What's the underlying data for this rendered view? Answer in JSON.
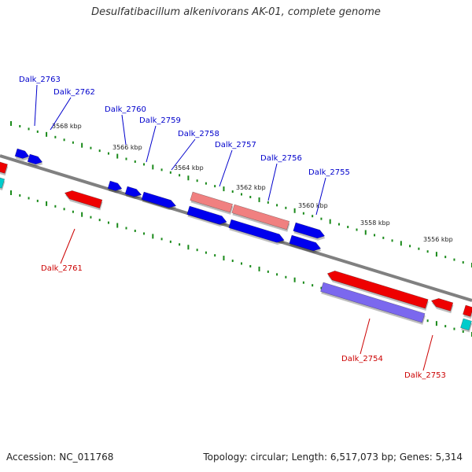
{
  "title": "Desulfatibacillum alkenivorans AK-01, complete genome",
  "accession": "Accession: NC_011768",
  "summary": "Topology: circular; Length: 6,517,073 bp; Genes: 5,314",
  "tick_labels": [
    "3568 kbp",
    "3566 kbp",
    "3564 kbp",
    "3562 kbp",
    "3560 kbp",
    "3558 kbp",
    "3556 kbp"
  ],
  "gene_labels": [
    "Dalk_2763",
    "Dalk_2762",
    "Dalk_2760",
    "Dalk_2759",
    "Dalk_2758",
    "Dalk_2757",
    "Dalk_2756",
    "Dalk_2755",
    "Dalk_2761",
    "Dalk_2754",
    "Dalk_2753"
  ],
  "colors": {
    "backbone": "#808080",
    "tick": "#1a8a1a",
    "gene_blue": "#0000ee",
    "gene_red": "#ee0000",
    "gene_pink": "#f08080",
    "gene_purple": "#7b68ee",
    "gene_cyan": "#00cccc",
    "label_blue": "#0000cc",
    "label_red": "#cc0000"
  }
}
